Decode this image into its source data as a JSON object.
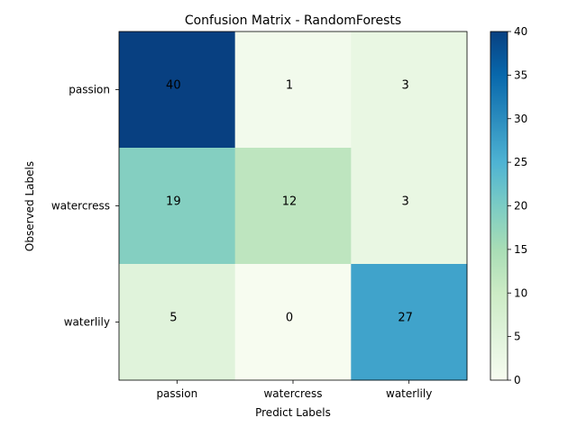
{
  "chart_data": {
    "type": "heatmap",
    "title": "Confusion Matrix - RandomForests",
    "xlabel": "Predict Labels",
    "ylabel": "Observed Labels",
    "x_categories": [
      "passion",
      "watercress",
      "waterlily"
    ],
    "y_categories": [
      "passion",
      "watercress",
      "waterlily"
    ],
    "values": [
      [
        40,
        1,
        3
      ],
      [
        19,
        12,
        3
      ],
      [
        5,
        0,
        27
      ]
    ],
    "colorbar": {
      "min": 0,
      "max": 40,
      "ticks": [
        "0",
        "5",
        "10",
        "15",
        "20",
        "25",
        "30",
        "35",
        "40"
      ],
      "colormap": "GnBu",
      "stops": [
        "#f7fcf0",
        "#e0f3db",
        "#ccebc5",
        "#a8ddb5",
        "#7bccc4",
        "#4eb3d3",
        "#2b8cbe",
        "#0868ac",
        "#084081"
      ]
    },
    "cell_label_color": "#000000",
    "grid": false
  }
}
